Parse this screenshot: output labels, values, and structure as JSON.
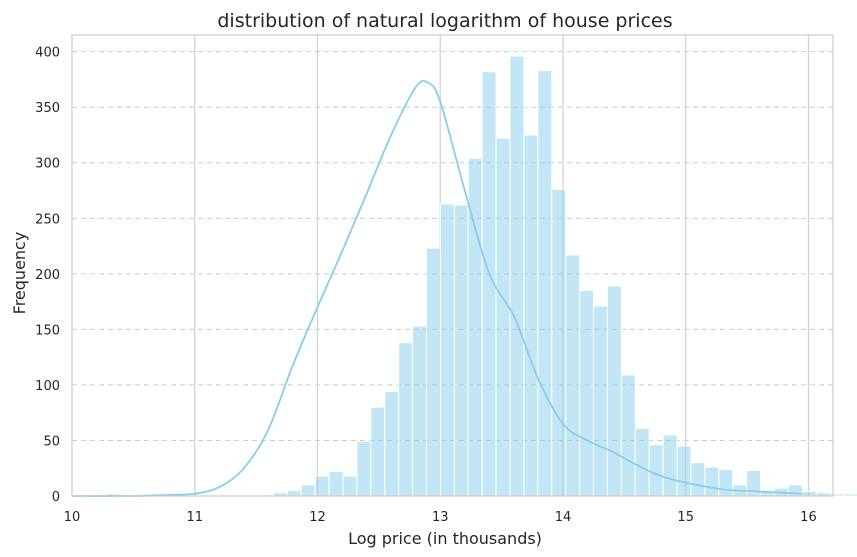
{
  "chart_data": {
    "type": "bar",
    "subtype": "histogram-with-kde",
    "title": "distribution of natural logarithm of house prices",
    "xlabel": "Log price (in thousands)",
    "ylabel": "Frequency",
    "xlim": [
      10,
      16.2
    ],
    "ylim": [
      0,
      415
    ],
    "xticks": [
      10,
      11,
      12,
      13,
      14,
      15,
      16
    ],
    "yticks": [
      0,
      50,
      100,
      150,
      200,
      250,
      300,
      350,
      400
    ],
    "grid": {
      "vertical": true,
      "horizontal": true,
      "horizontal_style": "dashed"
    },
    "bar_color": "#87ceeb",
    "kde_color": "#87ceeb",
    "bins": {
      "start": 10.28,
      "width": 0.1134,
      "counts": [
        2,
        0,
        0,
        0,
        0,
        0,
        0,
        0,
        0,
        0,
        0,
        1,
        3,
        5,
        10,
        18,
        22,
        18,
        49,
        80,
        94,
        138,
        153,
        223,
        263,
        262,
        304,
        382,
        322,
        396,
        325,
        383,
        276,
        217,
        185,
        171,
        189,
        109,
        61,
        46,
        55,
        45,
        30,
        26,
        24,
        10,
        23,
        5,
        7,
        10,
        4,
        3,
        2,
        2,
        1,
        1
      ]
    },
    "kde": {
      "x": [
        10.0,
        10.5,
        10.8,
        11.0,
        11.2,
        11.4,
        11.6,
        11.8,
        12.0,
        12.2,
        12.4,
        12.6,
        12.8,
        12.9,
        13.0,
        13.2,
        13.4,
        13.6,
        13.8,
        14.0,
        14.2,
        14.4,
        14.6,
        14.8,
        15.0,
        15.3,
        15.6,
        15.95
      ],
      "y": [
        0,
        0,
        1,
        2,
        8,
        25,
        60,
        118,
        170,
        220,
        272,
        325,
        368,
        372,
        355,
        275,
        200,
        162,
        105,
        65,
        50,
        40,
        28,
        18,
        12,
        6,
        4,
        2
      ]
    }
  }
}
